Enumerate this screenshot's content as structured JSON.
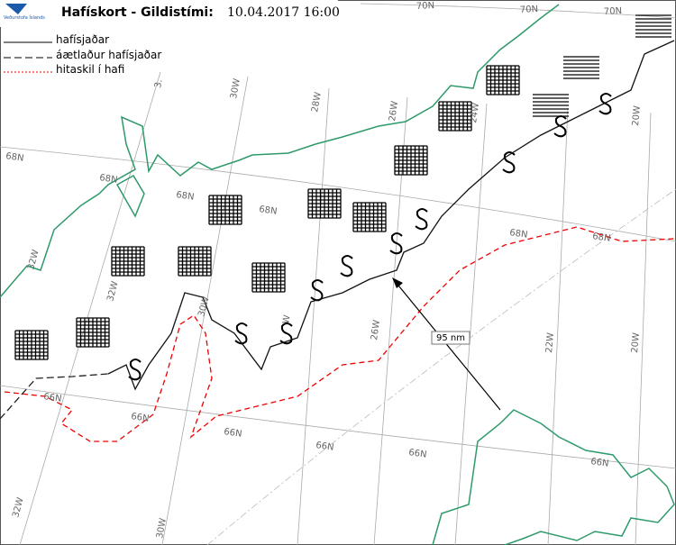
{
  "header": {
    "logo": "Veðurstofa Íslands",
    "title": "Hafískort - Gildistími:",
    "valid_time": "10.04.2017 16:00"
  },
  "legend": [
    {
      "label": "hafísjaðar"
    },
    {
      "label": "áætlaður hafísjaðar"
    },
    {
      "label": "hitaskil í hafi"
    }
  ],
  "grid_labels": [
    "70N",
    "70N",
    "70N",
    "68N",
    "68N",
    "68N",
    "68N",
    "68N",
    "68N",
    "66N",
    "66N",
    "66N",
    "66N",
    "66N",
    "66N",
    "32W",
    "30W",
    "28W",
    "26W",
    "24W",
    "20W",
    "32W",
    "30W",
    "W",
    "26W",
    "22W",
    "20W",
    "32W",
    "30W",
    "3."
  ],
  "annotation": "95 nm"
}
